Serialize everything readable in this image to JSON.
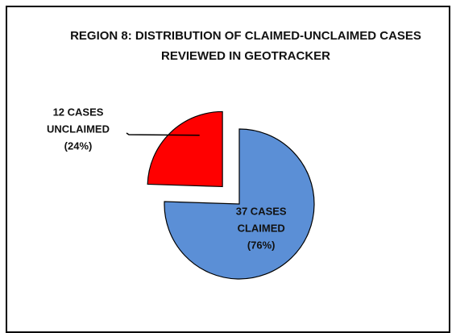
{
  "chart_data": {
    "type": "pie",
    "title": [
      "REGION 8: DISTRIBUTION OF CLAIMED-UNCLAIMED CASES",
      "REVIEWED IN GEOTRACKER"
    ],
    "categories": [
      "CLAIMED",
      "UNCLAIMED"
    ],
    "values": [
      37,
      12
    ],
    "value_labels": [
      "37 CASES",
      "12 CASES"
    ],
    "percent_labels": [
      "(76%)",
      "(24%)"
    ],
    "colors": [
      "#5b8fd6",
      "#ff0000"
    ],
    "explode": [
      false,
      true
    ]
  }
}
